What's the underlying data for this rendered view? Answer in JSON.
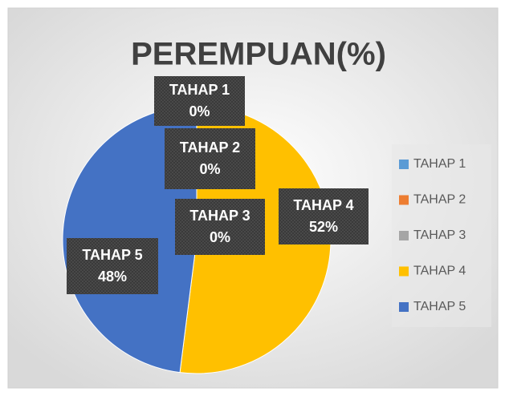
{
  "chart_data": {
    "type": "pie",
    "title": "PEREMPUAN(%)",
    "categories": [
      "TAHAP 1",
      "TAHAP 2",
      "TAHAP 3",
      "TAHAP 4",
      "TAHAP 5"
    ],
    "values": [
      0,
      0,
      0,
      52,
      48
    ],
    "value_labels": [
      "0%",
      "0%",
      "0%",
      "52%",
      "48%"
    ],
    "colors": [
      "#5b9bd5",
      "#ed7d31",
      "#a5a5a5",
      "#ffc000",
      "#4472c4"
    ],
    "legend": "right"
  }
}
